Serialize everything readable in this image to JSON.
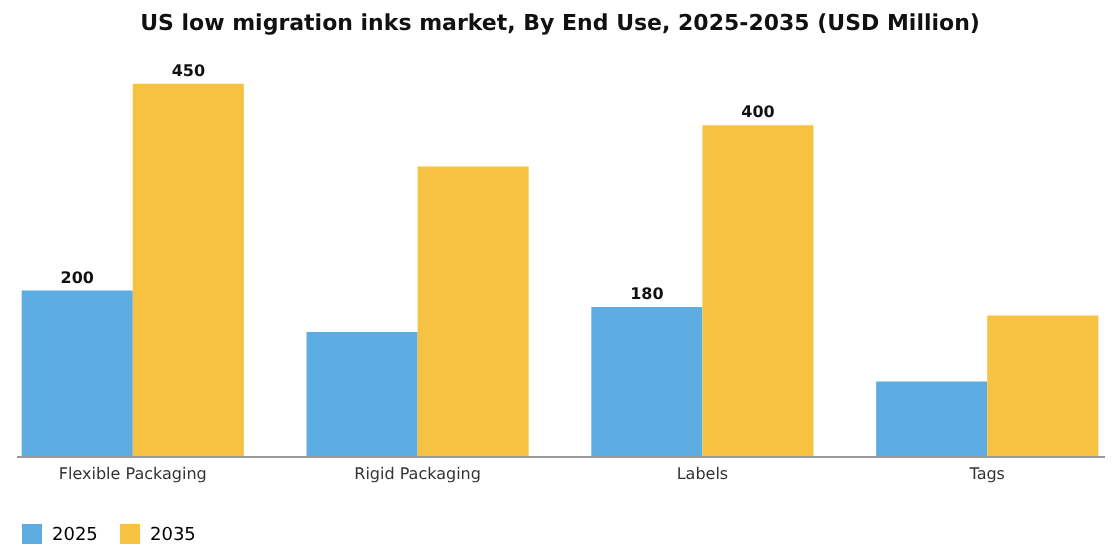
{
  "chart_data": {
    "type": "bar",
    "title": "US low migration inks market, By End Use, 2025-2035 (USD Million)",
    "categories": [
      "Flexible Packaging",
      "Rigid Packaging",
      "Labels",
      "Tags"
    ],
    "series": [
      {
        "name": "2025",
        "color": "#5dade2",
        "values": [
          200,
          150,
          180,
          90
        ],
        "value_labels": [
          "200",
          null,
          "180",
          null
        ]
      },
      {
        "name": "2035",
        "color": "#f7c242",
        "values": [
          450,
          350,
          400,
          170
        ],
        "value_labels": [
          "450",
          null,
          "400",
          null
        ]
      }
    ],
    "legend": "bottom"
  }
}
